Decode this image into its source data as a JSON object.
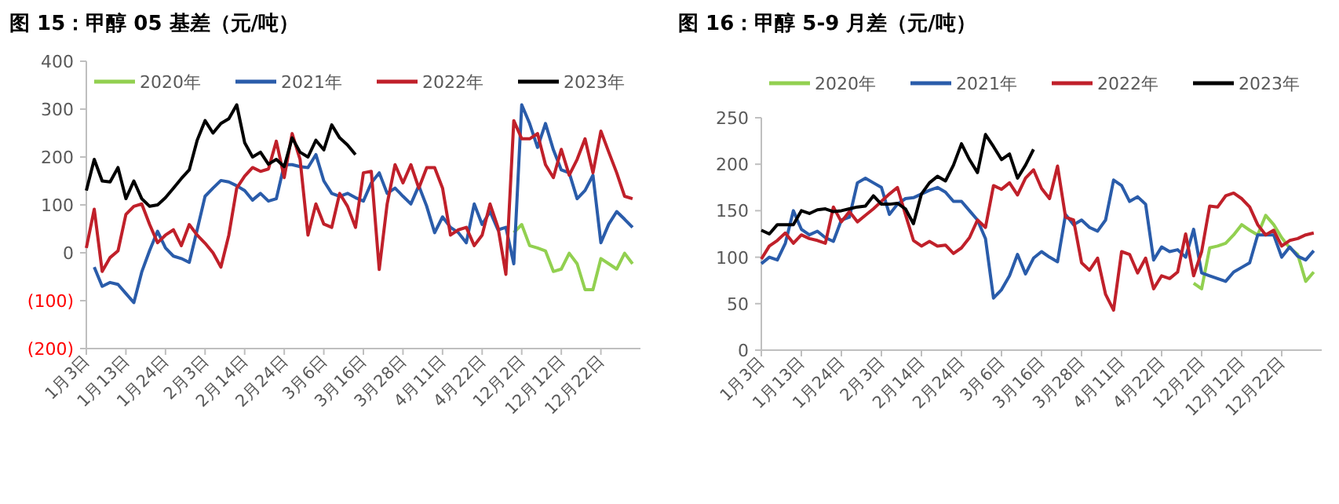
{
  "chart_data": [
    {
      "type": "line",
      "title": "图 15：甲醇 05 基差（元/吨）",
      "categories": [
        "1月3日",
        null,
        null,
        null,
        null,
        "1月13日",
        null,
        null,
        null,
        null,
        "1月24日",
        null,
        null,
        null,
        null,
        "2月3日",
        null,
        null,
        null,
        null,
        "2月14日",
        null,
        null,
        null,
        null,
        "2月24日",
        null,
        null,
        null,
        null,
        "3月6日",
        null,
        null,
        null,
        null,
        "3月16日",
        null,
        null,
        null,
        null,
        "3月28日",
        null,
        null,
        null,
        null,
        "4月11日",
        null,
        null,
        null,
        null,
        "4月22日",
        null,
        null,
        null,
        null,
        "12月2日",
        null,
        null,
        null,
        null,
        "12月12日",
        null,
        null,
        null,
        null,
        "12月22日",
        null,
        null,
        null,
        null
      ],
      "ylim": [
        -200,
        400
      ],
      "yticks": [
        {
          "value": -200,
          "label": "(200)"
        },
        {
          "value": -100,
          "label": "(100)"
        },
        0,
        100,
        200,
        300,
        400
      ],
      "legend": "top",
      "grid": false,
      "series": [
        {
          "name": "2020年",
          "color": "#92d050",
          "values": [
            null,
            null,
            null,
            null,
            null,
            null,
            null,
            null,
            null,
            null,
            null,
            null,
            null,
            null,
            null,
            null,
            null,
            null,
            null,
            null,
            null,
            null,
            null,
            null,
            null,
            null,
            null,
            null,
            null,
            null,
            null,
            null,
            null,
            null,
            null,
            null,
            null,
            null,
            null,
            null,
            null,
            null,
            null,
            null,
            null,
            null,
            null,
            null,
            null,
            null,
            null,
            null,
            null,
            null,
            42,
            59,
            15,
            10,
            4,
            -39,
            -34,
            -1,
            -23,
            -77,
            -77,
            -12,
            -23,
            -34,
            -1,
            -23
          ]
        },
        {
          "name": "2021年",
          "color": "#2a5caa",
          "values": [
            null,
            -30,
            -70,
            -62,
            -66,
            -85,
            -104,
            -40,
            5,
            45,
            10,
            -7,
            -12,
            -20,
            48,
            118,
            135,
            151,
            148,
            140,
            130,
            110,
            124,
            108,
            113,
            184,
            184,
            180,
            178,
            205,
            150,
            124,
            118,
            124,
            115,
            108,
            146,
            167,
            124,
            135,
            118,
            102,
            140,
            97,
            42,
            75,
            53,
            42,
            21,
            102,
            59,
            86,
            48,
            53,
            -23,
            309,
            270,
            220,
            270,
            215,
            173,
            167,
            113,
            130,
            162,
            21,
            60,
            86,
            70,
            53
          ]
        },
        {
          "name": "2022年",
          "color": "#c0202a",
          "values": [
            10,
            91,
            -39,
            -10,
            4,
            80,
            97,
            102,
            59,
            21,
            37,
            48,
            15,
            59,
            37,
            20,
            0,
            -30,
            37,
            135,
            160,
            178,
            170,
            175,
            233,
            157,
            249,
            195,
            37,
            102,
            60,
            53,
            124,
            97,
            53,
            167,
            170,
            -35,
            102,
            184,
            146,
            184,
            135,
            178,
            178,
            135,
            37,
            48,
            53,
            15,
            37,
            102,
            53,
            -45,
            276,
            238,
            238,
            249,
            184,
            157,
            216,
            162,
            195,
            238,
            167,
            254,
            210,
            167,
            118,
            113
          ]
        },
        {
          "name": "2023年",
          "color": "#000000",
          "values": [
            130,
            195,
            150,
            148,
            178,
            113,
            150,
            113,
            97,
            100,
            115,
            135,
            155,
            173,
            235,
            276,
            250,
            270,
            280,
            309,
            230,
            200,
            210,
            185,
            195,
            180,
            240,
            210,
            200,
            235,
            215,
            267,
            240,
            225,
            205,
            null,
            null,
            null,
            null,
            null,
            null,
            null,
            null,
            null,
            null,
            null,
            null,
            null,
            null,
            null,
            null,
            null,
            null,
            null,
            null,
            null,
            null,
            null,
            null,
            null,
            null,
            null,
            null,
            null,
            null,
            null,
            null,
            null,
            null,
            null
          ]
        }
      ]
    },
    {
      "type": "line",
      "title": "图 16：甲醇 5-9 月差（元/吨）",
      "categories": [
        "1月3日",
        null,
        null,
        null,
        null,
        "1月13日",
        null,
        null,
        null,
        null,
        "1月24日",
        null,
        null,
        null,
        null,
        "2月3日",
        null,
        null,
        null,
        null,
        "2月14日",
        null,
        null,
        null,
        null,
        "2月24日",
        null,
        null,
        null,
        null,
        "3月6日",
        null,
        null,
        null,
        null,
        "3月16日",
        null,
        null,
        null,
        null,
        "3月28日",
        null,
        null,
        null,
        null,
        "4月11日",
        null,
        null,
        null,
        null,
        "4月22日",
        null,
        null,
        null,
        null,
        "12月2日",
        null,
        null,
        null,
        null,
        "12月12日",
        null,
        null,
        null,
        null,
        "12月22日",
        null,
        null,
        null,
        null
      ],
      "ylim": [
        0,
        250
      ],
      "yticks": [
        0,
        50,
        100,
        150,
        200,
        250
      ],
      "legend": "top",
      "grid": false,
      "series": [
        {
          "name": "2020年",
          "color": "#92d050",
          "values": [
            null,
            null,
            null,
            null,
            null,
            null,
            null,
            null,
            null,
            null,
            null,
            null,
            null,
            null,
            null,
            null,
            null,
            null,
            null,
            null,
            null,
            null,
            null,
            null,
            null,
            null,
            null,
            null,
            null,
            null,
            null,
            null,
            null,
            null,
            null,
            null,
            null,
            null,
            null,
            null,
            null,
            null,
            null,
            null,
            null,
            null,
            null,
            null,
            null,
            null,
            null,
            null,
            null,
            null,
            72,
            66,
            110,
            112,
            115,
            124,
            135,
            129,
            124,
            145,
            135,
            121,
            110,
            103,
            74,
            84
          ]
        },
        {
          "name": "2021年",
          "color": "#2a5caa",
          "values": [
            93,
            100,
            97,
            115,
            150,
            130,
            124,
            128,
            121,
            117,
            140,
            143,
            180,
            185,
            180,
            175,
            146,
            157,
            163,
            164,
            168,
            172,
            175,
            170,
            160,
            160,
            150,
            140,
            120,
            56,
            65,
            80,
            103,
            82,
            99,
            106,
            100,
            95,
            146,
            135,
            140,
            132,
            128,
            140,
            183,
            177,
            160,
            165,
            157,
            97,
            111,
            106,
            108,
            100,
            130,
            83,
            80,
            77,
            74,
            84,
            89,
            94,
            124,
            124,
            124,
            100,
            111,
            101,
            97,
            107
          ]
        },
        {
          "name": "2022年",
          "color": "#c0202a",
          "values": [
            98,
            112,
            118,
            126,
            115,
            124,
            120,
            118,
            115,
            154,
            138,
            149,
            138,
            145,
            152,
            160,
            168,
            175,
            146,
            118,
            112,
            117,
            112,
            113,
            104,
            110,
            121,
            140,
            132,
            177,
            173,
            180,
            167,
            185,
            194,
            174,
            163,
            198,
            143,
            140,
            94,
            86,
            99,
            60,
            43,
            106,
            103,
            83,
            99,
            66,
            80,
            77,
            84,
            125,
            80,
            106,
            155,
            154,
            166,
            169,
            163,
            154,
            135,
            124,
            129,
            112,
            118,
            120,
            124,
            126
          ]
        },
        {
          "name": "2023年",
          "color": "#000000",
          "values": [
            129,
            125,
            135,
            135,
            135,
            150,
            147,
            151,
            152,
            149,
            150,
            152,
            154,
            155,
            166,
            157,
            157,
            158,
            152,
            136,
            168,
            180,
            187,
            182,
            199,
            222,
            205,
            191,
            232,
            219,
            205,
            211,
            185,
            199,
            216,
            null,
            null,
            null,
            null,
            null,
            null,
            null,
            null,
            null,
            null,
            null,
            null,
            null,
            null,
            null,
            null,
            null,
            null,
            null,
            null,
            null,
            null,
            null,
            null,
            null,
            null,
            null,
            null,
            null,
            null,
            null,
            null,
            null,
            null,
            null
          ]
        }
      ]
    }
  ]
}
